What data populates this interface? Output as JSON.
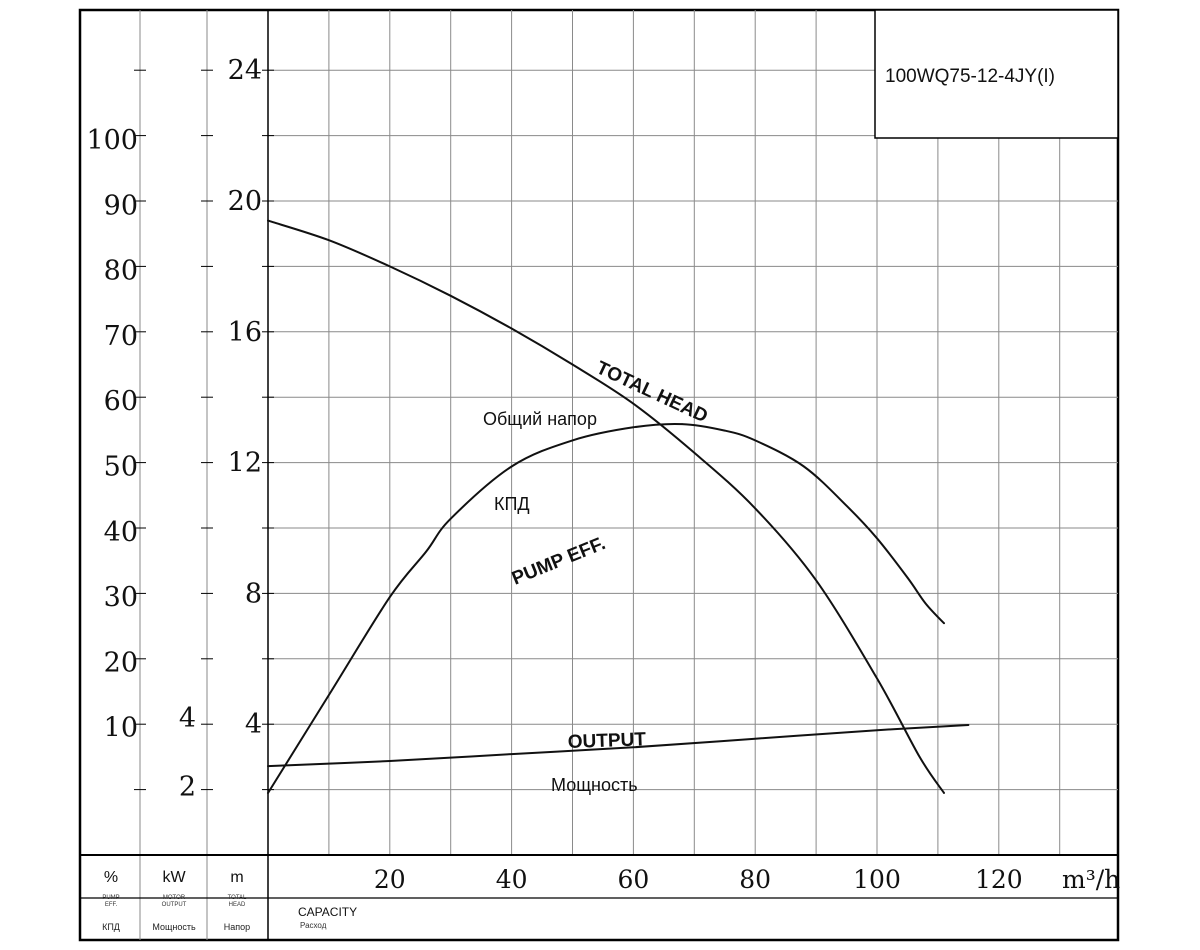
{
  "chart_data": {
    "type": "line",
    "model": "100WQ75-12-4JY(I)",
    "x_axis": {
      "unit": "m³/h",
      "ticks": [
        20,
        40,
        60,
        80,
        100,
        120
      ],
      "range": [
        0,
        140
      ],
      "label_en": "CAPACITY",
      "label_ru": "Расход"
    },
    "y_axes": [
      {
        "key": "head",
        "unit": "m",
        "label_en": "TOTAL HEAD",
        "label_ru": "Напор",
        "ticks": [
          4,
          8,
          12,
          16,
          20,
          24
        ],
        "range": [
          0,
          26
        ]
      },
      {
        "key": "power",
        "unit": "kW",
        "label_en": "MOTOR OUTPUT",
        "label_ru": "Мощность",
        "ticks": [
          2,
          4
        ],
        "range": [
          0,
          8.8
        ]
      },
      {
        "key": "eff",
        "unit": "%",
        "label_en": "PUMP EFF",
        "label_ru": "КПД",
        "ticks": [
          10,
          20,
          30,
          40,
          50,
          60,
          70,
          80,
          90,
          100
        ],
        "range": [
          -15,
          132
        ]
      }
    ],
    "series": [
      {
        "key": "head",
        "name_en": "TOTAL HEAD",
        "name_ru": "Общий напор",
        "axis": "head",
        "points": [
          [
            0,
            19.4
          ],
          [
            10,
            18.8
          ],
          [
            20,
            18.0
          ],
          [
            30,
            17.1
          ],
          [
            40,
            16.1
          ],
          [
            50,
            15.0
          ],
          [
            60,
            13.8
          ],
          [
            70,
            12.3
          ],
          [
            80,
            10.6
          ],
          [
            90,
            8.4
          ],
          [
            100,
            5.4
          ],
          [
            107,
            3.0
          ],
          [
            111,
            1.9
          ]
        ]
      },
      {
        "key": "eff",
        "name_en": "PUMP EFF.",
        "name_ru": "КПД",
        "axis": "eff",
        "points": [
          [
            0,
            0
          ],
          [
            10,
            15
          ],
          [
            20,
            30
          ],
          [
            26,
            37
          ],
          [
            30,
            42
          ],
          [
            40,
            50
          ],
          [
            50,
            54
          ],
          [
            60,
            56
          ],
          [
            68,
            56.5
          ],
          [
            75,
            55.5
          ],
          [
            80,
            54
          ],
          [
            88,
            50
          ],
          [
            95,
            44
          ],
          [
            100,
            39
          ],
          [
            105,
            33
          ],
          [
            108,
            29
          ],
          [
            111,
            26
          ]
        ]
      },
      {
        "key": "power",
        "name_en": "OUTPUT",
        "name_ru": "Мощность",
        "axis": "power",
        "points": [
          [
            0,
            2.6
          ],
          [
            20,
            2.75
          ],
          [
            40,
            2.95
          ],
          [
            60,
            3.15
          ],
          [
            80,
            3.4
          ],
          [
            100,
            3.65
          ],
          [
            115,
            3.8
          ]
        ]
      }
    ],
    "column_headers": [
      {
        "unit": "%",
        "line1": "PUMP",
        "line2": "EFF.",
        "ru": "КПД"
      },
      {
        "unit": "kW",
        "line1": "MOTOR",
        "line2": "OUTPUT",
        "ru": "Мощность"
      },
      {
        "unit": "m",
        "line1": "TOTAL",
        "line2": "HEAD",
        "ru": "Напор"
      }
    ]
  },
  "colors": {
    "line": "#111111",
    "grid": "#8a8a8a",
    "frame": "#000000"
  }
}
